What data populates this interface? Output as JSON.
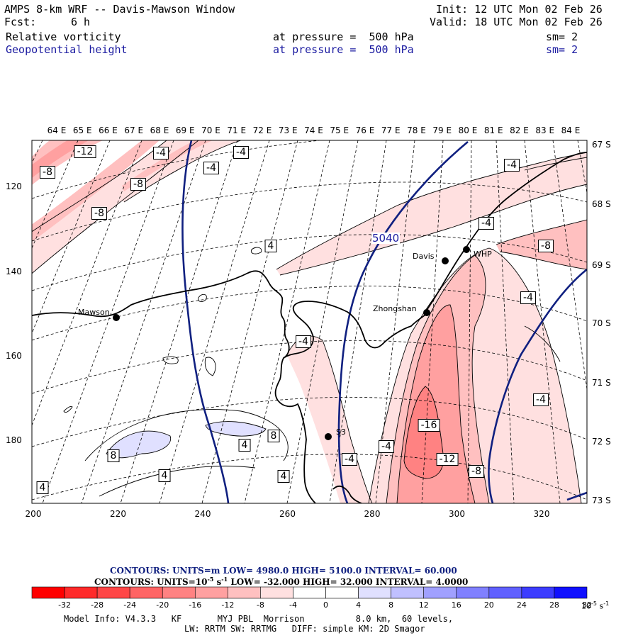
{
  "header": {
    "title": "AMPS 8-km WRF -- Davis-Mawson Window",
    "init": "Init: 12 UTC Mon 02 Feb 26",
    "fcst_label": "Fcst:",
    "fcst_value": "6 h",
    "valid": "Valid: 18 UTC Mon 02 Feb 26",
    "field1": "Relative vorticity",
    "field1_level": "at pressure =  500 hPa",
    "field1_sm": "sm= 2",
    "field2": "Geopotential height",
    "field2_level": "at pressure =  500 hPa",
    "field2_sm": "sm= 2"
  },
  "colors": {
    "text_blue": "#1a1aa0",
    "height_contour": "#102080"
  },
  "lon_labels": [
    "64 E",
    "65 E",
    "66 E",
    "67 E",
    "68 E",
    "69 E",
    "70 E",
    "71 E",
    "72 E",
    "73 E",
    "74 E",
    "75 E",
    "76 E",
    "77 E",
    "78 E",
    "79 E",
    "80 E",
    "81 E",
    "82 E",
    "83 E",
    "84 E"
  ],
  "lat_labels": [
    "67 S",
    "68 S",
    "69 S",
    "70 S",
    "71 S",
    "72 S",
    "73 S"
  ],
  "y_ticks": [
    "120",
    "140",
    "160",
    "180"
  ],
  "x_ticks": [
    "200",
    "220",
    "240",
    "260",
    "280",
    "300",
    "320"
  ],
  "stations": {
    "mawson": "Mawson",
    "davis": "Davis",
    "zhongshan": "Zhongshan",
    "whp": "WHP",
    "s3": "S3"
  },
  "contour_labels": {
    "v_m12a": "-12",
    "v_m8a": "-8",
    "v_m8b": "-8",
    "v_m8c": "-8",
    "v_m4a": "-4",
    "v_m4b": "-4",
    "v_m4c": "-4",
    "v_4a": "4",
    "v_m4d": "-4",
    "v_m4e": "-4",
    "v_m8d": "-8",
    "v_m4f": "-4",
    "v_m4g": "-4",
    "v_m4h": "-4",
    "v_m16": "-16",
    "v_m12b": "-12",
    "v_m8e": "-8",
    "v_m4i": "-4",
    "v_m4j": "-4",
    "v_8a": "8",
    "v_8b": "8",
    "v_4b": "4",
    "v_4c": "4",
    "v_4d": "4",
    "v_4e": "4",
    "h_5040": "5040"
  },
  "footer": {
    "contours_height": "CONTOURS:  UNITS=m  LOW=  4980.0      HIGH=  5100.0       INTERVAL=   60.000",
    "contours_vort_a": "CONTOURS:  UNITS=10",
    "contours_vort_b": "-5",
    "contours_vort_c": " s",
    "contours_vort_d": "-1",
    "contours_vort_e": "  LOW=  -32.000        HIGH=  32.000       INTERVAL=   4.0000",
    "colorbar_labels": [
      "-32",
      "-28",
      "-24",
      "-20",
      "-16",
      "-12",
      "-8",
      "-4",
      "0",
      "4",
      "8",
      "12",
      "16",
      "20",
      "24",
      "28",
      "32"
    ],
    "colorbar_unit_a": "10",
    "colorbar_unit_b": "-5",
    "colorbar_unit_c": " s",
    "colorbar_unit_d": "-1",
    "model_info": "Model Info: V4.3.3   KF       MYJ PBL  Morrison          8.0 km,  60 levels,",
    "model_info2": "LW: RRTM SW: RRTMG   DIFF: simple KM: 2D Smagor"
  },
  "colorbar_colors": [
    "#ff0000",
    "#ff2a2a",
    "#ff4646",
    "#ff6464",
    "#ff8282",
    "#ffa0a0",
    "#ffc0c0",
    "#ffe0e0",
    "#ffffff",
    "#ffffff",
    "#e0e0ff",
    "#c0c0ff",
    "#a0a0ff",
    "#8080ff",
    "#6060ff",
    "#3c3cff",
    "#1010ff"
  ]
}
